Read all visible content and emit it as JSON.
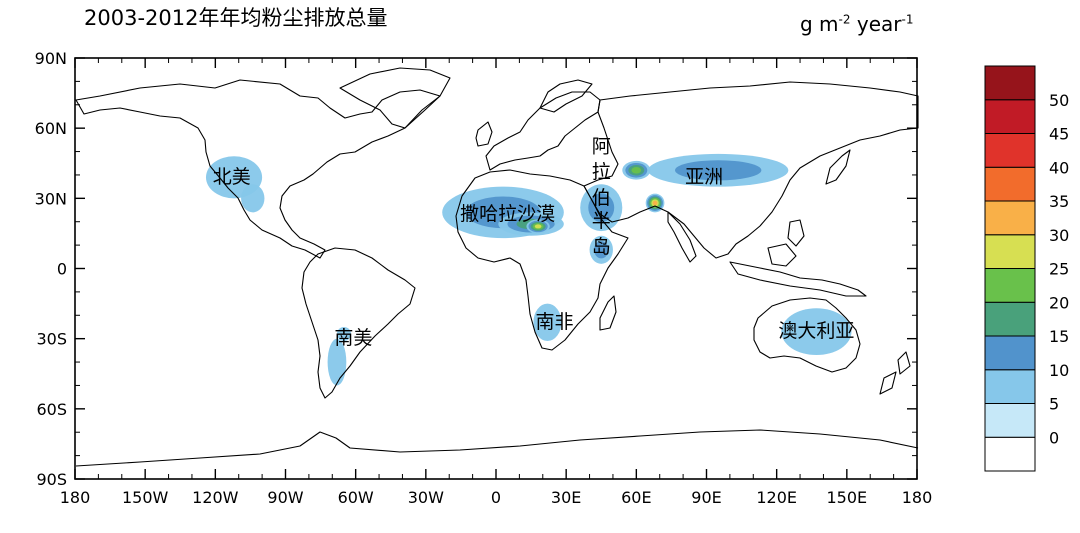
{
  "title": "2003-2012年年均粉尘排放总量",
  "units": {
    "base": "g m",
    "exp1": "-2",
    "mid": " year",
    "exp2": "-1"
  },
  "map": {
    "lon_range": [
      -180,
      180
    ],
    "lat_range": [
      -90,
      90
    ],
    "x_ticks": [
      {
        "value": -180,
        "label": "180"
      },
      {
        "value": -150,
        "label": "150W"
      },
      {
        "value": -120,
        "label": "120W"
      },
      {
        "value": -90,
        "label": "90W"
      },
      {
        "value": -60,
        "label": "60W"
      },
      {
        "value": -30,
        "label": "30W"
      },
      {
        "value": 0,
        "label": "0"
      },
      {
        "value": 30,
        "label": "30E"
      },
      {
        "value": 60,
        "label": "60E"
      },
      {
        "value": 90,
        "label": "90E"
      },
      {
        "value": 120,
        "label": "120E"
      },
      {
        "value": 150,
        "label": "150E"
      },
      {
        "value": 180,
        "label": "180"
      }
    ],
    "y_ticks": [
      {
        "value": 90,
        "label": "90N"
      },
      {
        "value": 60,
        "label": "60N"
      },
      {
        "value": 30,
        "label": "30N"
      },
      {
        "value": 0,
        "label": "0"
      },
      {
        "value": -30,
        "label": "30S"
      },
      {
        "value": -60,
        "label": "60S"
      },
      {
        "value": -90,
        "label": "90S"
      }
    ],
    "regions": [
      {
        "name": "北美",
        "lon": -113,
        "lat": 39
      },
      {
        "name": "撒哈拉沙漠",
        "lon": 5,
        "lat": 23
      },
      {
        "name": "阿",
        "lon": 45,
        "lat": 52
      },
      {
        "name": "拉",
        "lon": 45,
        "lat": 41
      },
      {
        "name": "伯",
        "lon": 45,
        "lat": 30
      },
      {
        "name": "半",
        "lon": 45,
        "lat": 20
      },
      {
        "name": "岛",
        "lon": 45,
        "lat": 9
      },
      {
        "name": "亚洲",
        "lon": 89,
        "lat": 39
      },
      {
        "name": "南非",
        "lon": 25,
        "lat": -23
      },
      {
        "name": "南美",
        "lon": -61,
        "lat": -30
      },
      {
        "name": "澳大利亚",
        "lon": 137,
        "lat": -27
      }
    ],
    "dust_fields": [
      {
        "lon": -112,
        "lat": 39,
        "rx": 12,
        "ry": 9,
        "level": 1
      },
      {
        "lon": -104,
        "lat": 30,
        "rx": 5,
        "ry": 6,
        "level": 1
      },
      {
        "lon": 3,
        "lat": 24,
        "rx": 26,
        "ry": 11,
        "level": 2
      },
      {
        "lon": 15,
        "lat": 19,
        "rx": 14,
        "ry": 5,
        "level": 3
      },
      {
        "lon": 18,
        "lat": 18,
        "rx": 5,
        "ry": 3,
        "level": 5
      },
      {
        "lon": 45,
        "lat": 26,
        "rx": 9,
        "ry": 10,
        "level": 2
      },
      {
        "lon": 68,
        "lat": 28,
        "rx": 4,
        "ry": 4,
        "level": 6
      },
      {
        "lon": 95,
        "lat": 42,
        "rx": 30,
        "ry": 7,
        "level": 2
      },
      {
        "lon": 60,
        "lat": 42,
        "rx": 6,
        "ry": 4,
        "level": 4
      },
      {
        "lon": 45,
        "lat": 8,
        "rx": 5,
        "ry": 6,
        "level": 2
      },
      {
        "lon": 22,
        "lat": -23,
        "rx": 6,
        "ry": 8,
        "level": 1
      },
      {
        "lon": 137,
        "lat": -27,
        "rx": 15,
        "ry": 10,
        "level": 1
      },
      {
        "lon": -68,
        "lat": -40,
        "rx": 4,
        "ry": 10,
        "level": 1
      },
      {
        "lon": -65,
        "lat": -28,
        "rx": 3,
        "ry": 3,
        "level": 1
      }
    ]
  },
  "colorbar": {
    "labels": [
      "0",
      "5",
      "10",
      "15",
      "20",
      "25",
      "30",
      "35",
      "40",
      "45",
      "50"
    ],
    "colors": [
      "#ffffff",
      "#c6e8f8",
      "#86c7ea",
      "#5193cc",
      "#49a17b",
      "#69c14b",
      "#d7df52",
      "#f9b048",
      "#f26c2c",
      "#e0332b",
      "#c11b26",
      "#96141b"
    ]
  }
}
